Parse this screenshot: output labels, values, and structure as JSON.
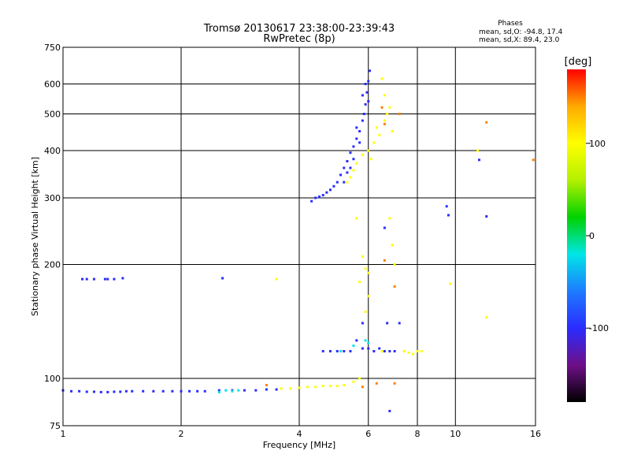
{
  "chart_data": {
    "type": "scatter",
    "title": "Tromsø 20130617 23:38:00-23:39:43",
    "subtitle": "RwPretec (8p)",
    "xlabel": "Frequency [MHz]",
    "ylabel": "Stationary phase Virtual Height [km]",
    "x_scale": "log",
    "y_scale": "log",
    "xlim": [
      1,
      16
    ],
    "ylim": [
      75,
      750
    ],
    "x_ticks": [
      "1",
      "2",
      "4",
      "6",
      "8",
      "10",
      "16"
    ],
    "y_ticks": [
      "750",
      "600",
      "500",
      "400",
      "300",
      "200",
      "100",
      "75"
    ],
    "grid": true,
    "phases_info": {
      "title": "Phases",
      "line1": "mean, sd,O: -94.8, 17.4",
      "line2": "mean, sd,X: 89.4, 23.0"
    },
    "colorbar": {
      "label": "[deg]",
      "range": [
        -180,
        180
      ],
      "ticks": [
        "100",
        "0",
        "-100"
      ],
      "colormap": [
        "#000000",
        "#6e0f87",
        "#2a2cff",
        "#1e7bff",
        "#00e6e6",
        "#00d200",
        "#b4f000",
        "#ffff00",
        "#ffaa00",
        "#ff0000"
      ]
    },
    "series": [
      {
        "phase_deg": -100,
        "points": [
          [
            1.0,
            93
          ],
          [
            1.05,
            92.5
          ],
          [
            1.1,
            92.5
          ],
          [
            1.15,
            92.2
          ],
          [
            1.2,
            92.2
          ],
          [
            1.25,
            92
          ],
          [
            1.3,
            92
          ],
          [
            1.35,
            92.2
          ],
          [
            1.4,
            92.2
          ],
          [
            1.45,
            92.5
          ],
          [
            1.5,
            92.5
          ],
          [
            1.6,
            92.5
          ],
          [
            1.7,
            92.5
          ],
          [
            1.8,
            92.5
          ],
          [
            1.9,
            92.5
          ],
          [
            2.0,
            92.5
          ],
          [
            2.1,
            92.5
          ],
          [
            2.2,
            92.5
          ],
          [
            2.3,
            92.5
          ],
          [
            2.5,
            93
          ],
          [
            2.7,
            93
          ],
          [
            2.9,
            93
          ],
          [
            3.1,
            93
          ],
          [
            3.3,
            93.5
          ],
          [
            3.5,
            93.5
          ],
          [
            1.12,
            183
          ],
          [
            1.15,
            183
          ],
          [
            1.2,
            183
          ],
          [
            1.28,
            183
          ],
          [
            1.3,
            183
          ],
          [
            1.35,
            183
          ],
          [
            1.42,
            184
          ],
          [
            2.55,
            184
          ],
          [
            4.3,
            294
          ],
          [
            4.4,
            300
          ],
          [
            4.5,
            302
          ],
          [
            4.6,
            305
          ],
          [
            4.7,
            310
          ],
          [
            4.8,
            315
          ],
          [
            4.9,
            322
          ],
          [
            5.0,
            330
          ],
          [
            5.1,
            345
          ],
          [
            5.2,
            360
          ],
          [
            5.3,
            375
          ],
          [
            5.4,
            395
          ],
          [
            5.5,
            410
          ],
          [
            5.6,
            430
          ],
          [
            5.7,
            450
          ],
          [
            5.8,
            480
          ],
          [
            5.85,
            500
          ],
          [
            5.9,
            530
          ],
          [
            5.95,
            570
          ],
          [
            6.0,
            610
          ],
          [
            6.05,
            650
          ],
          [
            5.6,
            460
          ],
          [
            5.7,
            420
          ],
          [
            5.5,
            380
          ],
          [
            5.8,
            560
          ],
          [
            5.9,
            600
          ],
          [
            6.0,
            540
          ],
          [
            5.3,
            350
          ],
          [
            5.2,
            330
          ],
          [
            5.4,
            360
          ],
          [
            4.6,
            118
          ],
          [
            4.8,
            118
          ],
          [
            5.0,
            118
          ],
          [
            5.2,
            118
          ],
          [
            5.4,
            118
          ],
          [
            5.6,
            126
          ],
          [
            5.8,
            120
          ],
          [
            6.0,
            120
          ],
          [
            6.2,
            118
          ],
          [
            6.4,
            120
          ],
          [
            6.6,
            118
          ],
          [
            6.8,
            118
          ],
          [
            7.0,
            118
          ],
          [
            6.7,
            140
          ],
          [
            7.2,
            140
          ],
          [
            5.8,
            140
          ],
          [
            9.5,
            285
          ],
          [
            9.6,
            270
          ],
          [
            11.5,
            378
          ],
          [
            12.0,
            268
          ],
          [
            6.6,
            250
          ],
          [
            6.8,
            82
          ]
        ]
      },
      {
        "phase_deg": -20,
        "points": [
          [
            2.5,
            92
          ],
          [
            2.6,
            93
          ],
          [
            2.7,
            92.5
          ],
          [
            2.8,
            93
          ],
          [
            5.9,
            126
          ],
          [
            6.0,
            124
          ],
          [
            5.1,
            118
          ],
          [
            5.5,
            122
          ]
        ]
      },
      {
        "phase_deg": 100,
        "points": [
          [
            3.6,
            94
          ],
          [
            3.8,
            94
          ],
          [
            4.0,
            94.5
          ],
          [
            4.2,
            95
          ],
          [
            4.4,
            95
          ],
          [
            4.6,
            95.5
          ],
          [
            4.8,
            95.5
          ],
          [
            5.0,
            95.5
          ],
          [
            5.2,
            96
          ],
          [
            5.5,
            98
          ],
          [
            5.7,
            100
          ],
          [
            5.3,
            330
          ],
          [
            5.4,
            340
          ],
          [
            5.5,
            355
          ],
          [
            5.6,
            370
          ],
          [
            5.8,
            390
          ],
          [
            6.0,
            400
          ],
          [
            6.2,
            420
          ],
          [
            6.4,
            440
          ],
          [
            6.6,
            480
          ],
          [
            6.8,
            520
          ],
          [
            6.5,
            620
          ],
          [
            6.6,
            560
          ],
          [
            6.7,
            500
          ],
          [
            6.3,
            460
          ],
          [
            6.9,
            450
          ],
          [
            6.1,
            380
          ],
          [
            5.6,
            265
          ],
          [
            5.8,
            210
          ],
          [
            5.9,
            195
          ],
          [
            6.0,
            190
          ],
          [
            5.7,
            180
          ],
          [
            6.8,
            265
          ],
          [
            6.9,
            225
          ],
          [
            7.0,
            200
          ],
          [
            7.4,
            118
          ],
          [
            7.6,
            117
          ],
          [
            7.8,
            116
          ],
          [
            8.0,
            118
          ],
          [
            8.2,
            118
          ],
          [
            6.5,
            118
          ],
          [
            5.9,
            150
          ],
          [
            6.0,
            165
          ],
          [
            11.4,
            400
          ],
          [
            12.0,
            145
          ],
          [
            3.5,
            183
          ],
          [
            9.7,
            178
          ]
        ]
      },
      {
        "phase_deg": 150,
        "points": [
          [
            6.5,
            520
          ],
          [
            6.6,
            470
          ],
          [
            5.8,
            95
          ],
          [
            6.3,
            97
          ],
          [
            7.0,
            97
          ],
          [
            12.0,
            475
          ],
          [
            15.8,
            378
          ],
          [
            7.2,
            500
          ],
          [
            6.6,
            205
          ],
          [
            7.0,
            175
          ],
          [
            3.3,
            96
          ]
        ]
      }
    ]
  }
}
